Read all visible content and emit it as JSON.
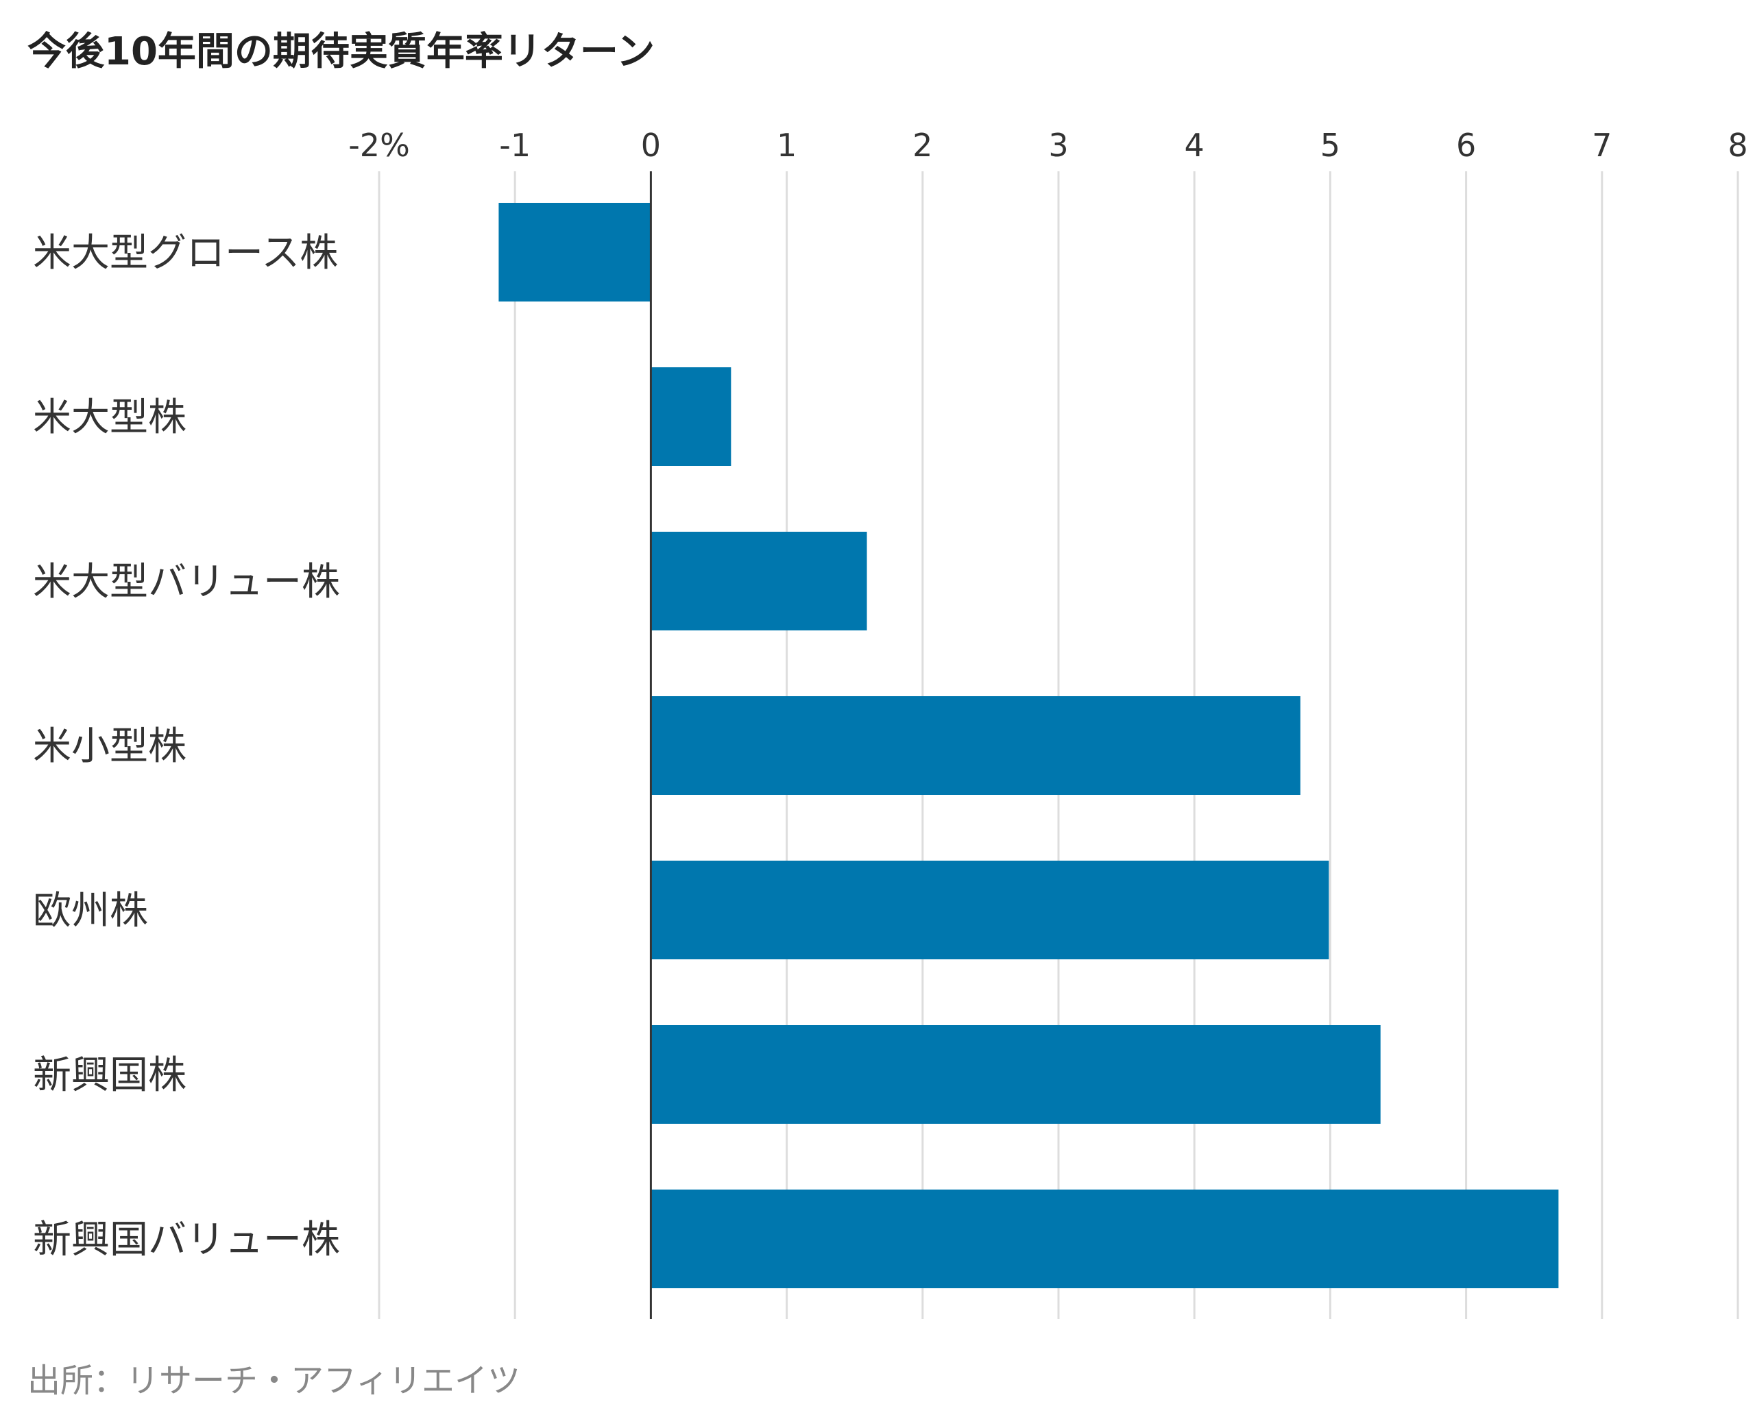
{
  "title": "今後10年間の期待実質年率リターン",
  "source": "出所：リサーチ・アフィリエイツ",
  "colors": {
    "bar": "#0077ae",
    "grid": "#dddddd",
    "axis": "#333333",
    "text": "#333333"
  },
  "chart_data": {
    "type": "bar",
    "orientation": "horizontal",
    "categories": [
      "米大型グロース株",
      "米大型株",
      "米大型バリュー株",
      "米小型株",
      "欧州株",
      "新興国株",
      "新興国バリュー株"
    ],
    "values": [
      -1.12,
      0.59,
      1.59,
      4.78,
      4.99,
      5.37,
      6.68
    ],
    "xlim": [
      -2,
      8
    ],
    "xticks": [
      -2,
      -1,
      0,
      1,
      2,
      3,
      4,
      5,
      6,
      7,
      8
    ],
    "xtick_labels": [
      "-2%",
      "-1",
      "0",
      "1",
      "2",
      "3",
      "4",
      "5",
      "6",
      "7",
      "8"
    ],
    "grid": true,
    "legend": "none"
  }
}
